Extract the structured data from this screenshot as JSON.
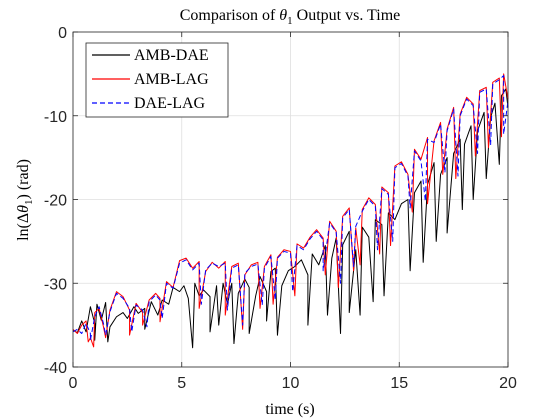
{
  "chart_data": {
    "type": "line",
    "title": "Comparison of θ₁ Output vs. Time",
    "title_parts": {
      "prefix": "Comparison of ",
      "symbol": "θ",
      "subscript": "1",
      "suffix": " Output vs. Time"
    },
    "xlabel": "time (s)",
    "ylabel": "ln(Δθ₁) (rad)",
    "ylabel_parts": {
      "prefix": "ln(Δ",
      "symbol": "θ",
      "subscript": "1",
      "suffix": ") (rad)"
    },
    "xlim": [
      0,
      20
    ],
    "ylim": [
      -40,
      0
    ],
    "xticks": [
      0,
      5,
      10,
      15,
      20
    ],
    "yticks": [
      0,
      -10,
      -20,
      -30,
      -40
    ],
    "xtick_labels": [
      "0",
      "5",
      "10",
      "15",
      "20"
    ],
    "ytick_labels": [
      "0",
      "-10",
      "-20",
      "-30",
      "-40"
    ],
    "grid": true,
    "legend_position": "top-left",
    "series": [
      {
        "name": "AMB-DAE",
        "color": "#000000",
        "dash": "solid",
        "points": [
          [
            0,
            -35.6
          ],
          [
            0.2,
            -35.9
          ],
          [
            0.4,
            -34.5
          ],
          [
            0.6,
            -35.8
          ],
          [
            0.8,
            -32.8
          ],
          [
            1.0,
            -34.8
          ],
          [
            1.1,
            -32.5
          ],
          [
            1.3,
            -34.4
          ],
          [
            1.5,
            -32.3
          ],
          [
            1.7,
            -35.2
          ],
          [
            2.0,
            -34.0
          ],
          [
            2.3,
            -33.5
          ],
          [
            2.5,
            -34.2
          ],
          [
            2.8,
            -32.8
          ],
          [
            3.0,
            -33.6
          ],
          [
            3.3,
            -33.0
          ],
          [
            3.6,
            -32.2
          ],
          [
            3.9,
            -33.8
          ],
          [
            4.1,
            -32.0
          ],
          [
            4.4,
            -32.5
          ],
          [
            4.6,
            -30.5
          ],
          [
            4.9,
            -31.0
          ],
          [
            5.1,
            -30.3
          ],
          [
            5.3,
            -31.8
          ],
          [
            5.6,
            -30.0
          ],
          [
            5.8,
            -31.5
          ],
          [
            6.0,
            -30.8
          ],
          [
            6.3,
            -31.6
          ],
          [
            6.6,
            -30.3
          ],
          [
            6.9,
            -30.0
          ],
          [
            7.1,
            -32.5
          ],
          [
            7.3,
            -30.0
          ],
          [
            7.6,
            -31.2
          ],
          [
            7.9,
            -29.5
          ],
          [
            8.1,
            -30.5
          ],
          [
            8.4,
            -31.5
          ],
          [
            8.6,
            -29.2
          ],
          [
            8.9,
            -31.0
          ],
          [
            9.1,
            -28.6
          ],
          [
            9.3,
            -28.2
          ],
          [
            9.6,
            -30.3
          ],
          [
            9.9,
            -28.5
          ],
          [
            10.2,
            -28.0
          ],
          [
            10.5,
            -27.2
          ],
          [
            10.8,
            -29.0
          ],
          [
            11.0,
            -26.5
          ],
          [
            11.3,
            -27.8
          ],
          [
            11.6,
            -25.5
          ],
          [
            11.9,
            -27.0
          ],
          [
            12.1,
            -24.6
          ],
          [
            12.4,
            -25.4
          ],
          [
            12.7,
            -23.8
          ],
          [
            13.0,
            -26.0
          ],
          [
            13.3,
            -23.3
          ],
          [
            13.6,
            -24.5
          ],
          [
            13.9,
            -22.4
          ],
          [
            14.2,
            -23.0
          ],
          [
            14.5,
            -21.6
          ],
          [
            14.8,
            -22.4
          ],
          [
            15.1,
            -20.5
          ],
          [
            15.4,
            -20.0
          ],
          [
            15.7,
            -19.2
          ],
          [
            16.0,
            -17.8
          ],
          [
            16.3,
            -18.2
          ],
          [
            16.6,
            -15.6
          ],
          [
            16.9,
            -17.0
          ],
          [
            17.2,
            -15.0
          ],
          [
            17.5,
            -14.5
          ],
          [
            17.8,
            -12.8
          ],
          [
            18.0,
            -13.4
          ],
          [
            18.3,
            -11.2
          ],
          [
            18.6,
            -11.8
          ],
          [
            18.9,
            -9.6
          ],
          [
            19.2,
            -10.2
          ],
          [
            19.4,
            -8.5
          ],
          [
            19.7,
            -7.6
          ],
          [
            19.9,
            -6.8
          ],
          [
            20.0,
            -9.0
          ]
        ],
        "dips": [
          [
            1.0,
            -36.8
          ],
          [
            1.6,
            -37.0
          ],
          [
            3.3,
            -35.5
          ],
          [
            5.5,
            -37.7
          ],
          [
            6.3,
            -35.8
          ],
          [
            6.7,
            -35.0
          ],
          [
            7.4,
            -37.2
          ],
          [
            8.1,
            -36.0
          ],
          [
            8.9,
            -34.5
          ],
          [
            9.4,
            -36.2
          ],
          [
            10.8,
            -35.0
          ],
          [
            11.7,
            -33.8
          ],
          [
            12.3,
            -36.0
          ],
          [
            12.7,
            -33.5
          ],
          [
            13.2,
            -33.8
          ],
          [
            13.8,
            -32.2
          ],
          [
            14.3,
            -31.5
          ],
          [
            15.5,
            -28.5
          ],
          [
            16.1,
            -27.5
          ],
          [
            16.7,
            -25.0
          ],
          [
            17.2,
            -24.0
          ],
          [
            17.9,
            -21.2
          ],
          [
            18.4,
            -20.0
          ],
          [
            19.0,
            -17.5
          ],
          [
            19.6,
            -15.8
          ]
        ]
      },
      {
        "name": "AMB-LAG",
        "color": "#ff0000",
        "dash": "solid",
        "points": [
          [
            0,
            -35.5
          ],
          [
            0.2,
            -36.0
          ],
          [
            0.4,
            -35.0
          ],
          [
            0.6,
            -34.5
          ],
          [
            0.8,
            -36.5
          ],
          [
            1.0,
            -33.5
          ],
          [
            1.2,
            -33.0
          ],
          [
            1.4,
            -35.2
          ],
          [
            1.7,
            -33.2
          ],
          [
            2.0,
            -31.0
          ],
          [
            2.3,
            -31.6
          ],
          [
            2.6,
            -33.2
          ],
          [
            2.9,
            -32.4
          ],
          [
            3.2,
            -33.5
          ],
          [
            3.5,
            -32.0
          ],
          [
            3.8,
            -31.2
          ],
          [
            4.0,
            -31.8
          ],
          [
            4.3,
            -29.8
          ],
          [
            4.6,
            -30.5
          ],
          [
            4.9,
            -27.3
          ],
          [
            5.2,
            -27.0
          ],
          [
            5.5,
            -28.2
          ],
          [
            5.8,
            -27.4
          ],
          [
            6.1,
            -28.6
          ],
          [
            6.4,
            -27.5
          ],
          [
            6.7,
            -28.2
          ],
          [
            7.0,
            -27.4
          ],
          [
            7.3,
            -28.0
          ],
          [
            7.6,
            -27.6
          ],
          [
            7.9,
            -29.0
          ],
          [
            8.2,
            -27.8
          ],
          [
            8.5,
            -27.5
          ],
          [
            8.8,
            -28.0
          ],
          [
            9.1,
            -26.6
          ],
          [
            9.4,
            -26.9
          ],
          [
            9.7,
            -26.0
          ],
          [
            10.0,
            -26.2
          ],
          [
            10.3,
            -25.3
          ],
          [
            10.6,
            -25.8
          ],
          [
            10.9,
            -24.5
          ],
          [
            11.2,
            -23.6
          ],
          [
            11.5,
            -24.6
          ],
          [
            11.8,
            -22.6
          ],
          [
            12.1,
            -23.8
          ],
          [
            12.4,
            -22.0
          ],
          [
            12.7,
            -21.0
          ],
          [
            13.0,
            -23.4
          ],
          [
            13.3,
            -21.2
          ],
          [
            13.6,
            -19.8
          ],
          [
            13.9,
            -20.6
          ],
          [
            14.2,
            -18.5
          ],
          [
            14.5,
            -19.2
          ],
          [
            14.8,
            -16.0
          ],
          [
            15.1,
            -15.5
          ],
          [
            15.4,
            -17.0
          ],
          [
            15.7,
            -14.0
          ],
          [
            16.0,
            -15.2
          ],
          [
            16.3,
            -12.6
          ],
          [
            16.6,
            -13.0
          ],
          [
            16.9,
            -10.8
          ],
          [
            17.2,
            -11.6
          ],
          [
            17.5,
            -9.0
          ],
          [
            17.8,
            -9.8
          ],
          [
            18.1,
            -7.8
          ],
          [
            18.4,
            -8.6
          ],
          [
            18.7,
            -7.0
          ],
          [
            19.0,
            -6.6
          ],
          [
            19.3,
            -6.0
          ],
          [
            19.6,
            -5.5
          ],
          [
            19.8,
            -5.0
          ],
          [
            20.0,
            -8.0
          ]
        ],
        "dips": [
          [
            0.7,
            -37.0
          ],
          [
            0.95,
            -37.6
          ],
          [
            1.5,
            -36.5
          ],
          [
            2.6,
            -36.2
          ],
          [
            3.2,
            -35.0
          ],
          [
            4.0,
            -34.6
          ],
          [
            5.8,
            -33.0
          ],
          [
            7.0,
            -33.8
          ],
          [
            7.8,
            -35.5
          ],
          [
            8.6,
            -33.0
          ],
          [
            9.2,
            -32.5
          ],
          [
            10.2,
            -31.5
          ],
          [
            11.6,
            -29.0
          ],
          [
            12.2,
            -30.5
          ],
          [
            12.9,
            -28.5
          ],
          [
            13.2,
            -27.8
          ],
          [
            14.1,
            -26.5
          ],
          [
            14.6,
            -25.5
          ],
          [
            15.6,
            -21.5
          ],
          [
            16.3,
            -20.5
          ],
          [
            17.0,
            -17.0
          ],
          [
            17.6,
            -17.5
          ],
          [
            18.5,
            -14.8
          ],
          [
            19.1,
            -13.8
          ],
          [
            19.7,
            -12.5
          ]
        ]
      },
      {
        "name": "DAE-LAG",
        "color": "#0000ff",
        "dash": "dashed",
        "points": [
          [
            0,
            -35.8
          ],
          [
            0.2,
            -35.5
          ],
          [
            0.4,
            -36.0
          ],
          [
            0.6,
            -34.8
          ],
          [
            0.8,
            -36.0
          ],
          [
            1.0,
            -34.0
          ],
          [
            1.2,
            -32.8
          ],
          [
            1.4,
            -34.8
          ],
          [
            1.7,
            -33.4
          ],
          [
            2.0,
            -31.2
          ],
          [
            2.3,
            -31.8
          ],
          [
            2.6,
            -33.0
          ],
          [
            2.9,
            -32.6
          ],
          [
            3.2,
            -33.2
          ],
          [
            3.5,
            -32.2
          ],
          [
            3.8,
            -31.4
          ],
          [
            4.0,
            -32.0
          ],
          [
            4.3,
            -30.0
          ],
          [
            4.6,
            -30.6
          ],
          [
            4.9,
            -27.6
          ],
          [
            5.2,
            -27.2
          ],
          [
            5.5,
            -28.4
          ],
          [
            5.8,
            -27.6
          ],
          [
            6.1,
            -28.4
          ],
          [
            6.4,
            -27.6
          ],
          [
            6.7,
            -28.0
          ],
          [
            7.0,
            -27.6
          ],
          [
            7.3,
            -28.2
          ],
          [
            7.6,
            -27.8
          ],
          [
            7.9,
            -28.8
          ],
          [
            8.2,
            -28.0
          ],
          [
            8.5,
            -27.7
          ],
          [
            8.8,
            -28.2
          ],
          [
            9.1,
            -26.8
          ],
          [
            9.4,
            -27.0
          ],
          [
            9.7,
            -26.2
          ],
          [
            10.0,
            -26.4
          ],
          [
            10.3,
            -25.5
          ],
          [
            10.6,
            -26.0
          ],
          [
            10.9,
            -24.7
          ],
          [
            11.2,
            -23.8
          ],
          [
            11.5,
            -24.8
          ],
          [
            11.8,
            -22.8
          ],
          [
            12.1,
            -23.9
          ],
          [
            12.4,
            -22.2
          ],
          [
            12.7,
            -21.2
          ],
          [
            13.0,
            -23.2
          ],
          [
            13.3,
            -21.4
          ],
          [
            13.6,
            -20.0
          ],
          [
            13.9,
            -20.8
          ],
          [
            14.2,
            -18.7
          ],
          [
            14.5,
            -19.4
          ],
          [
            14.8,
            -16.2
          ],
          [
            15.1,
            -15.7
          ],
          [
            15.4,
            -17.2
          ],
          [
            15.7,
            -14.2
          ],
          [
            16.0,
            -15.4
          ],
          [
            16.3,
            -12.8
          ],
          [
            16.6,
            -13.2
          ],
          [
            16.9,
            -11.0
          ],
          [
            17.2,
            -11.8
          ],
          [
            17.5,
            -9.2
          ],
          [
            17.8,
            -10.0
          ],
          [
            18.1,
            -8.0
          ],
          [
            18.4,
            -8.8
          ],
          [
            18.7,
            -7.2
          ],
          [
            19.0,
            -6.8
          ],
          [
            19.3,
            -6.2
          ],
          [
            19.6,
            -5.7
          ],
          [
            19.8,
            -5.2
          ],
          [
            20.0,
            -8.2
          ]
        ],
        "dips": [
          [
            0.8,
            -36.8
          ],
          [
            1.5,
            -36.2
          ],
          [
            2.7,
            -35.8
          ],
          [
            3.4,
            -35.2
          ],
          [
            4.1,
            -34.2
          ],
          [
            5.9,
            -32.5
          ],
          [
            7.1,
            -33.2
          ],
          [
            7.8,
            -35.0
          ],
          [
            8.7,
            -32.6
          ],
          [
            9.3,
            -32.0
          ],
          [
            10.1,
            -31.0
          ],
          [
            11.5,
            -28.5
          ],
          [
            12.3,
            -30.0
          ],
          [
            12.9,
            -28.0
          ],
          [
            14.0,
            -26.0
          ],
          [
            14.7,
            -25.0
          ],
          [
            15.5,
            -21.0
          ],
          [
            16.2,
            -20.2
          ],
          [
            17.1,
            -16.8
          ],
          [
            17.7,
            -17.2
          ],
          [
            18.6,
            -14.5
          ],
          [
            19.2,
            -13.5
          ],
          [
            19.8,
            -12.2
          ]
        ]
      }
    ]
  }
}
